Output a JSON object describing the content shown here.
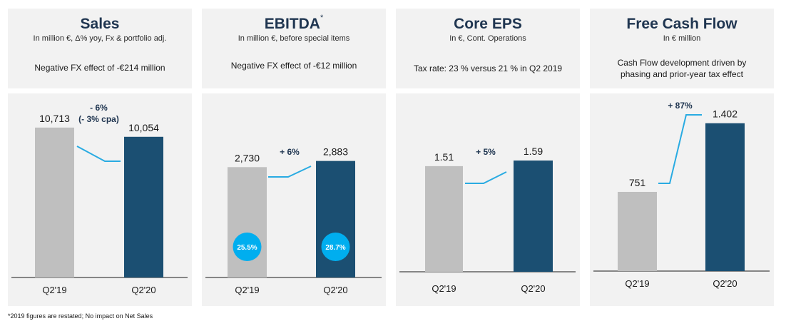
{
  "panels": [
    {
      "title": "Sales",
      "title_sup": "",
      "subtitle": "In million €, Δ% yoy, Fx & portfolio adj.",
      "note": [
        "Negative FX effect of -€214 million"
      ],
      "change": [
        "- 6%",
        "(- 3% cpa)"
      ]
    },
    {
      "title": "EBITDA",
      "title_sup": "*",
      "subtitle": "In million €, before special items",
      "note": [
        "Negative FX effect of -€12 million"
      ],
      "change": [
        "+ 6%"
      ]
    },
    {
      "title": "Core EPS",
      "title_sup": "",
      "subtitle": "In €, Cont. Operations",
      "note": [
        "Tax rate: 23 % versus 21 % in Q2 2019"
      ],
      "change": [
        "+ 5%"
      ]
    },
    {
      "title": "Free Cash Flow",
      "title_sup": "",
      "subtitle": "In € million",
      "note": [
        "Cash Flow development driven by",
        "phasing and prior-year tax effect"
      ],
      "change": [
        "+ 87%"
      ]
    }
  ],
  "chart_data": [
    {
      "type": "bar",
      "categories": [
        "Q2'19",
        "Q2'20"
      ],
      "values": [
        10713,
        10054
      ],
      "value_labels": [
        "10,713",
        "10,054"
      ],
      "ylim": [
        0,
        13000
      ],
      "title": "Sales",
      "bar_colors": [
        "#bfbfbf",
        "#1b4f72"
      ]
    },
    {
      "type": "bar",
      "categories": [
        "Q2'19",
        "Q2'20"
      ],
      "values": [
        2730,
        2883
      ],
      "value_labels": [
        "2,730",
        "2,883"
      ],
      "badges": [
        "25.5%",
        "28.7%"
      ],
      "ylim": [
        0,
        4500
      ],
      "title": "EBITDA",
      "bar_colors": [
        "#bfbfbf",
        "#1b4f72"
      ]
    },
    {
      "type": "bar",
      "categories": [
        "Q2'19",
        "Q2'20"
      ],
      "values": [
        1.51,
        1.59
      ],
      "value_labels": [
        "1.51",
        "1.59"
      ],
      "ylim": [
        0,
        2.6
      ],
      "title": "Core EPS",
      "bar_colors": [
        "#bfbfbf",
        "#1b4f72"
      ]
    },
    {
      "type": "bar",
      "categories": [
        "Q2'19",
        "Q2'20"
      ],
      "values": [
        751,
        1402
      ],
      "value_labels": [
        "751",
        "1.402"
      ],
      "ylim": [
        0,
        1725
      ],
      "title": "Free Cash Flow",
      "bar_colors": [
        "#bfbfbf",
        "#1b4f72"
      ]
    }
  ],
  "colors": {
    "bar_prior": "#bfbfbf",
    "bar_current": "#1b4f72",
    "connector": "#29abe2",
    "badge": "#00aeef"
  },
  "footnote": "*2019 figures are restated; No impact on Net Sales"
}
